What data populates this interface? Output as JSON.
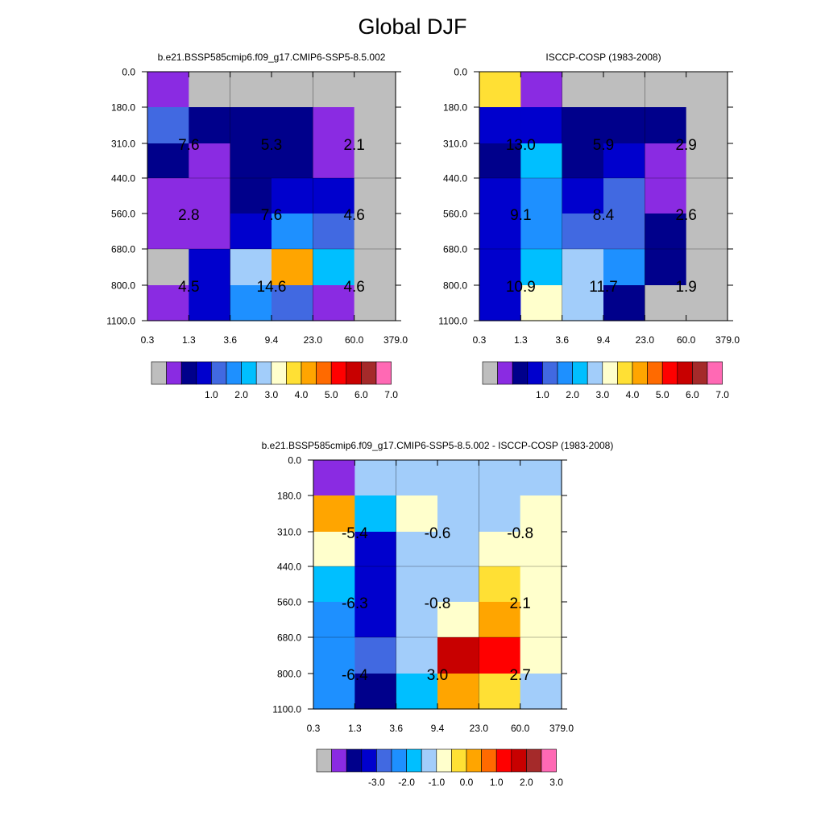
{
  "title": "Global DJF",
  "colors": {
    "palette": [
      "#bebebe",
      "#8a2be2",
      "#00008b",
      "#0000cd",
      "#4169e1",
      "#1e90ff",
      "#00bfff",
      "#a2cdfa",
      "#ffffcc",
      "#ffe034",
      "#ffa500",
      "#ff6a00",
      "#ff0000",
      "#c80000",
      "#a52a2a",
      "#ff69b4"
    ]
  },
  "chart_data": [
    {
      "type": "heatmap",
      "name": "panel-model",
      "title": "b.e21.BSSP585cmip6.f09_g17.CMIP6-SSP5-8.5.002",
      "x_edges": [
        "0.3",
        "1.3",
        "3.6",
        "9.4",
        "23.0",
        "60.0",
        "379.0"
      ],
      "y_edges": [
        "0.0",
        "180.0",
        "310.0",
        "440.0",
        "560.0",
        "680.0",
        "800.0",
        "1100.0"
      ],
      "cells": [
        [
          1,
          0,
          0,
          0,
          0,
          0
        ],
        [
          4,
          2,
          2,
          2,
          1,
          0
        ],
        [
          2,
          1,
          2,
          2,
          1,
          0
        ],
        [
          1,
          1,
          2,
          3,
          3,
          0
        ],
        [
          1,
          1,
          3,
          5,
          4,
          0
        ],
        [
          0,
          3,
          7,
          10,
          6,
          0
        ],
        [
          1,
          3,
          5,
          4,
          1,
          0
        ]
      ],
      "annotations": [
        {
          "text": "7.6",
          "col": 1,
          "row": 2
        },
        {
          "text": "5.3",
          "col": 3,
          "row": 2
        },
        {
          "text": "2.1",
          "col": 5,
          "row": 2
        },
        {
          "text": "2.8",
          "col": 1,
          "row": 4
        },
        {
          "text": "7.6",
          "col": 3,
          "row": 4
        },
        {
          "text": "4.6",
          "col": 5,
          "row": 4
        },
        {
          "text": "4.5",
          "col": 1,
          "row": 6
        },
        {
          "text": "14.6",
          "col": 3,
          "row": 6
        },
        {
          "text": "4.6",
          "col": 5,
          "row": 6
        }
      ],
      "colorbar_labels": [
        "1.0",
        "2.0",
        "3.0",
        "4.0",
        "5.0",
        "6.0",
        "7.0"
      ]
    },
    {
      "type": "heatmap",
      "name": "panel-obs",
      "title": "ISCCP-COSP (1983-2008)",
      "x_edges": [
        "0.3",
        "1.3",
        "3.6",
        "9.4",
        "23.0",
        "60.0",
        "379.0"
      ],
      "y_edges": [
        "0.0",
        "180.0",
        "310.0",
        "440.0",
        "560.0",
        "680.0",
        "800.0",
        "1100.0"
      ],
      "cells": [
        [
          9,
          1,
          0,
          0,
          0,
          0
        ],
        [
          3,
          3,
          2,
          2,
          2,
          0
        ],
        [
          2,
          6,
          2,
          3,
          1,
          0
        ],
        [
          3,
          5,
          3,
          4,
          1,
          0
        ],
        [
          3,
          5,
          4,
          4,
          2,
          0
        ],
        [
          3,
          6,
          7,
          5,
          2,
          0
        ],
        [
          3,
          8,
          7,
          2,
          0,
          0
        ]
      ],
      "annotations": [
        {
          "text": "13.0",
          "col": 1,
          "row": 2
        },
        {
          "text": "5.9",
          "col": 3,
          "row": 2
        },
        {
          "text": "2.9",
          "col": 5,
          "row": 2
        },
        {
          "text": "9.1",
          "col": 1,
          "row": 4
        },
        {
          "text": "8.4",
          "col": 3,
          "row": 4
        },
        {
          "text": "2.6",
          "col": 5,
          "row": 4
        },
        {
          "text": "10.9",
          "col": 1,
          "row": 6
        },
        {
          "text": "11.7",
          "col": 3,
          "row": 6
        },
        {
          "text": "1.9",
          "col": 5,
          "row": 6
        }
      ],
      "colorbar_labels": [
        "1.0",
        "2.0",
        "3.0",
        "4.0",
        "5.0",
        "6.0",
        "7.0"
      ]
    },
    {
      "type": "heatmap",
      "name": "panel-diff",
      "title": "b.e21.BSSP585cmip6.f09_g17.CMIP6-SSP5-8.5.002 - ISCCP-COSP (1983-2008)",
      "x_edges": [
        "0.3",
        "1.3",
        "3.6",
        "9.4",
        "23.0",
        "60.0",
        "379.0"
      ],
      "y_edges": [
        "0.0",
        "180.0",
        "310.0",
        "440.0",
        "560.0",
        "680.0",
        "800.0",
        "1100.0"
      ],
      "cells": [
        [
          1,
          7,
          7,
          7,
          7,
          7
        ],
        [
          10,
          6,
          8,
          7,
          7,
          8
        ],
        [
          8,
          3,
          7,
          7,
          8,
          8
        ],
        [
          6,
          3,
          7,
          7,
          9,
          8
        ],
        [
          5,
          3,
          7,
          8,
          10,
          8
        ],
        [
          5,
          4,
          7,
          13,
          12,
          8
        ],
        [
          5,
          2,
          6,
          10,
          9,
          7
        ]
      ],
      "annotations": [
        {
          "text": "-5.4",
          "col": 1,
          "row": 2
        },
        {
          "text": "-0.6",
          "col": 3,
          "row": 2
        },
        {
          "text": "-0.8",
          "col": 5,
          "row": 2
        },
        {
          "text": "-6.3",
          "col": 1,
          "row": 4
        },
        {
          "text": "-0.8",
          "col": 3,
          "row": 4
        },
        {
          "text": "2.1",
          "col": 5,
          "row": 4
        },
        {
          "text": "-6.4",
          "col": 1,
          "row": 6
        },
        {
          "text": "3.0",
          "col": 3,
          "row": 6
        },
        {
          "text": "2.7",
          "col": 5,
          "row": 6
        }
      ],
      "colorbar_labels": [
        "-3.0",
        "-2.0",
        "-1.0",
        "0.0",
        "1.0",
        "2.0",
        "3.0"
      ]
    }
  ]
}
